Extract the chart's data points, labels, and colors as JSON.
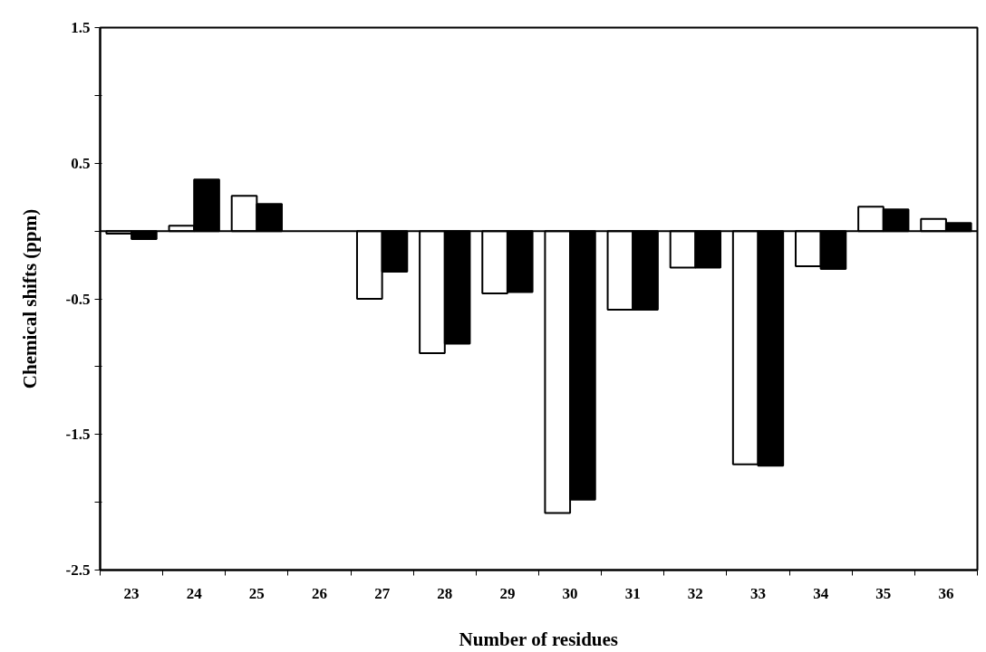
{
  "chart_data": {
    "type": "bar",
    "xlabel": "Number of residues",
    "ylabel": "Chemical shifts (ppm)",
    "categories": [
      "23",
      "24",
      "25",
      "26",
      "27",
      "28",
      "29",
      "30",
      "31",
      "32",
      "33",
      "34",
      "35",
      "36"
    ],
    "series": [
      {
        "color": "#ffffff",
        "values": [
          -0.02,
          0.04,
          0.26,
          null,
          -0.5,
          -0.9,
          -0.46,
          -2.08,
          -0.58,
          -0.27,
          -1.72,
          -0.26,
          0.18,
          0.09
        ]
      },
      {
        "color": "#000000",
        "values": [
          -0.06,
          0.38,
          0.2,
          null,
          -0.3,
          -0.83,
          -0.45,
          -1.98,
          -0.58,
          -0.27,
          -1.73,
          -0.28,
          0.16,
          0.06
        ]
      }
    ],
    "ylim": [
      -2.5,
      1.5
    ],
    "yticks": [
      1.5,
      {
        "value": 1.0,
        "label": null
      },
      0.5,
      {
        "value": 0.0,
        "label": null
      },
      -0.5,
      {
        "value": -1.0,
        "label": null
      },
      -1.5,
      {
        "value": -2.0,
        "label": null
      },
      -2.5
    ],
    "ref_lines": [
      {
        "axis": "y",
        "value": 0
      }
    ],
    "grid": false
  }
}
